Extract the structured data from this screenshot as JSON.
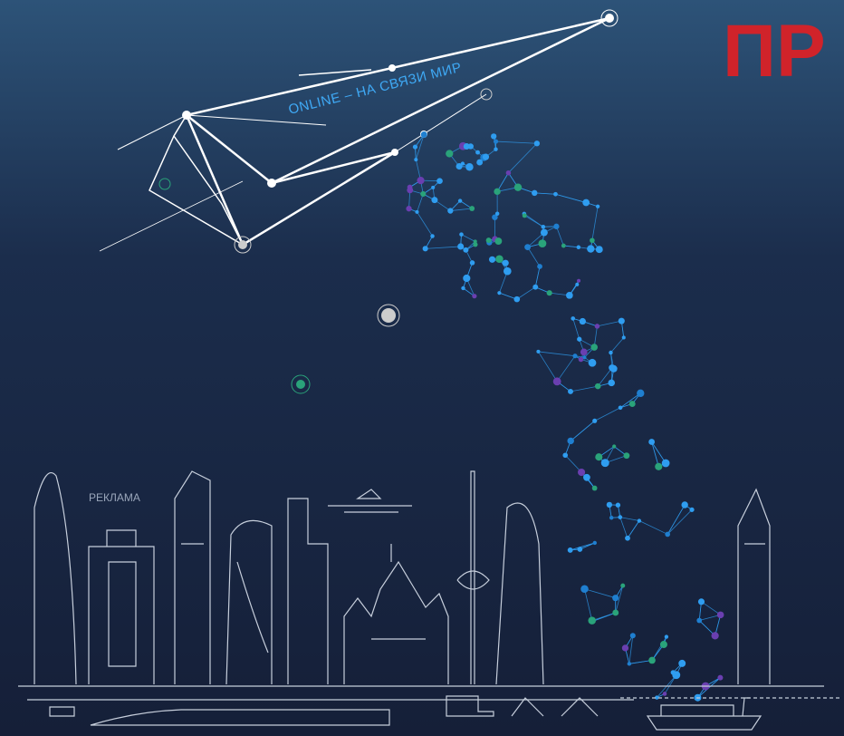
{
  "heading": "ПР",
  "tagline": "ONLINE – НА СВЯЗИ МИР",
  "label": "РЕКЛАМА"
}
